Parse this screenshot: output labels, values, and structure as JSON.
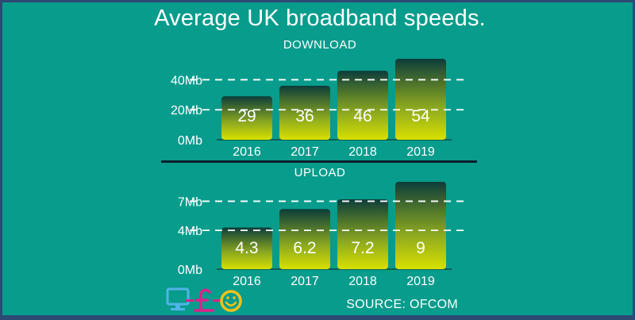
{
  "title": "Average UK broadband speeds.",
  "source": "SOURCE: OFCOM",
  "colors": {
    "background": "#089c8c",
    "border": "#2c4a73",
    "bar_top": "#0c3d3a",
    "bar_bottom": "#d8e000",
    "text": "#ffffff"
  },
  "logo": {
    "monitor_icon_color": "#4fb4e6",
    "pound_icon_color": "#e0208c",
    "smiley_icon_color": "#f3c21a"
  },
  "chart_data": [
    {
      "type": "bar",
      "title": "DOWNLOAD",
      "categories": [
        "2016",
        "2017",
        "2018",
        "2019"
      ],
      "values": [
        29,
        36,
        46,
        54
      ],
      "data_labels": [
        "29",
        "36",
        "46",
        "54"
      ],
      "y_ticks": [
        0,
        20,
        40
      ],
      "y_tick_labels": [
        "0Mb",
        "20Mb",
        "40Mb"
      ],
      "ylim": [
        0,
        54
      ],
      "grid": "dashed horizontal lines at 20 and 40"
    },
    {
      "type": "bar",
      "title": "UPLOAD",
      "categories": [
        "2016",
        "2017",
        "2018",
        "2019"
      ],
      "values": [
        4.3,
        6.2,
        7.2,
        9
      ],
      "data_labels": [
        "4.3",
        "6.2",
        "7.2",
        "9"
      ],
      "y_ticks": [
        0,
        4,
        7
      ],
      "y_tick_labels": [
        "0Mb",
        "4Mb",
        "7Mb"
      ],
      "ylim": [
        0,
        9
      ],
      "grid": "dashed horizontal lines at 4 and 7"
    }
  ]
}
